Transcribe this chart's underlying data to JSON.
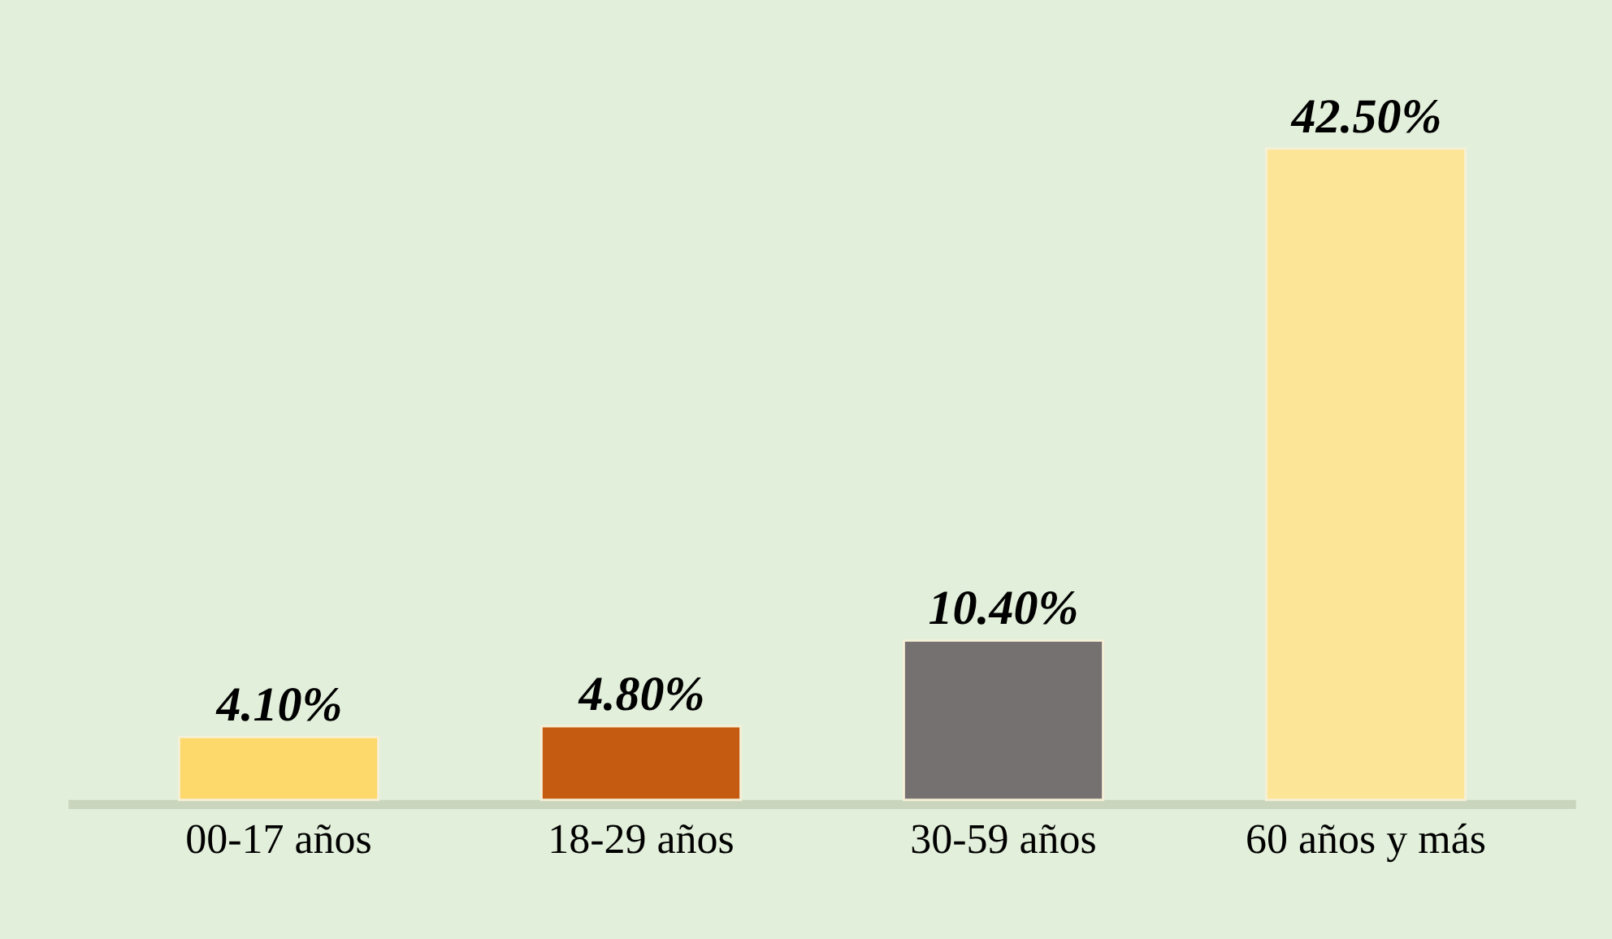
{
  "chart_data": {
    "type": "bar",
    "categories": [
      "00-17 años",
      "18-29 años",
      "30-59 años",
      "60 años y más"
    ],
    "values": [
      4.1,
      4.8,
      10.4,
      42.5
    ],
    "colors": [
      "#fdd86a",
      "#c55a11",
      "#767171",
      "#fde598"
    ],
    "value_labels": [
      "4.10%",
      "4.80%",
      "10.40%",
      "42.50%"
    ]
  }
}
